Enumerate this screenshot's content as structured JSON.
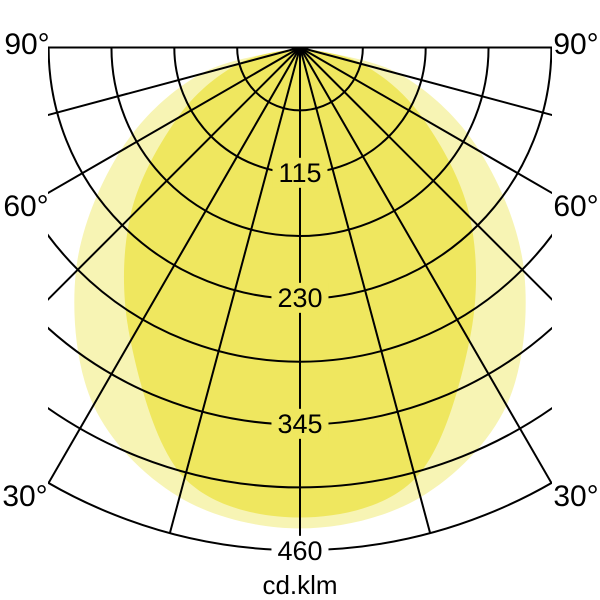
{
  "chart_data": {
    "type": "polar",
    "subtype": "luminous-intensity-distribution",
    "unit_label": "cd.klm",
    "orientation": "origin at top center, 0° axis points straight down",
    "radial_axis": {
      "min": 0,
      "max": 460,
      "tick_step": 57.5,
      "labeled_ticks": [
        115,
        230,
        345,
        460
      ]
    },
    "angular_axis": {
      "range_deg": [
        -90,
        90
      ],
      "line_step_deg": 15,
      "labeled_angles_deg": [
        90,
        60,
        30
      ]
    },
    "grid": true,
    "legend": false,
    "rings": [
      {
        "value": 115,
        "label": "115"
      },
      {
        "value": 230,
        "label": "230"
      },
      {
        "value": 345,
        "label": "345"
      },
      {
        "value": 460,
        "label": "460"
      }
    ],
    "angle_ticks": [
      {
        "value": 90,
        "label": "90°"
      },
      {
        "value": 60,
        "label": "60°"
      },
      {
        "value": 30,
        "label": "30°"
      }
    ],
    "series": [
      {
        "name": "light-yellow-lobe",
        "color": "#f7f4b4",
        "symmetric": true,
        "angles_deg": [
          0,
          15,
          30,
          45,
          60,
          75,
          90
        ],
        "intensities_cd_klm": [
          440,
          426,
          378,
          290,
          190,
          95,
          0
        ]
      },
      {
        "name": "yellow-lobe",
        "color": "#efe75f",
        "symmetric": true,
        "angles_deg": [
          0,
          15,
          30,
          45,
          60,
          75,
          90
        ],
        "intensities_cd_klm": [
          430,
          408,
          310,
          220,
          130,
          60,
          0
        ]
      }
    ],
    "colors": {
      "grid": "#000000",
      "background": "#ffffff"
    }
  }
}
